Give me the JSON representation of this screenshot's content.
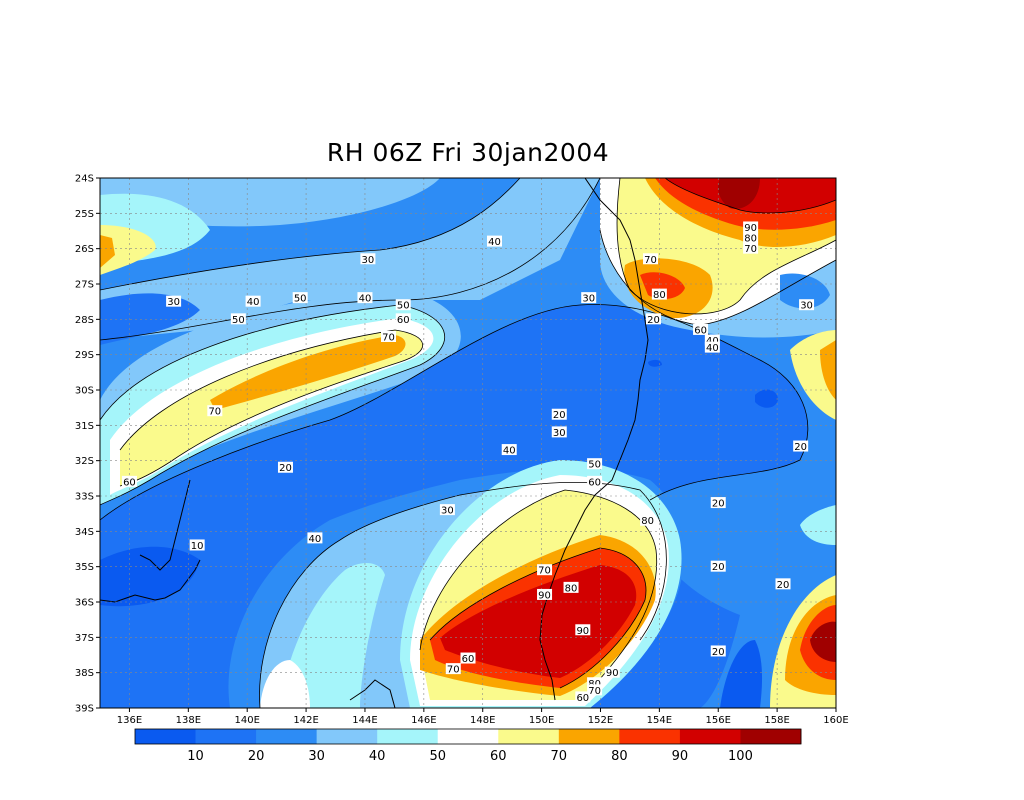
{
  "title": "RH 06Z Fri 30jan2004",
  "map": {
    "lon_range": [
      135,
      160
    ],
    "lat_range": [
      -39,
      -24
    ],
    "lon_ticks": [
      "136E",
      "138E",
      "140E",
      "142E",
      "144E",
      "146E",
      "148E",
      "150E",
      "152E",
      "154E",
      "156E",
      "158E",
      "160E"
    ],
    "lat_ticks": [
      "24S",
      "25S",
      "26S",
      "27S",
      "28S",
      "29S",
      "30S",
      "31S",
      "32S",
      "33S",
      "34S",
      "35S",
      "36S",
      "37S",
      "38S",
      "39S"
    ],
    "grid": true
  },
  "colorbar": {
    "labels": [
      "10",
      "20",
      "30",
      "40",
      "50",
      "60",
      "70",
      "80",
      "90",
      "100"
    ],
    "colors": [
      "#0a5af0",
      "#1e73f5",
      "#2d8cf5",
      "#82c8fa",
      "#a5f5fa",
      "#ffffff",
      "#fafa8c",
      "#faa500",
      "#fa3200",
      "#d20000",
      "#a00000"
    ]
  },
  "contour_labels": [
    {
      "text": "40",
      "lon": 148.4,
      "lat": -25.8
    },
    {
      "text": "30",
      "lon": 144.1,
      "lat": -26.3
    },
    {
      "text": "40",
      "lon": 144.0,
      "lat": -27.4
    },
    {
      "text": "30",
      "lon": 151.6,
      "lat": -27.4
    },
    {
      "text": "30",
      "lon": 137.5,
      "lat": -27.5
    },
    {
      "text": "40",
      "lon": 140.2,
      "lat": -27.5
    },
    {
      "text": "50",
      "lon": 141.8,
      "lat": -27.4
    },
    {
      "text": "50",
      "lon": 145.3,
      "lat": -27.6
    },
    {
      "text": "60",
      "lon": 145.3,
      "lat": -28.0
    },
    {
      "text": "50",
      "lon": 139.7,
      "lat": -28.0
    },
    {
      "text": "20",
      "lon": 153.8,
      "lat": -28.0
    },
    {
      "text": "70",
      "lon": 144.8,
      "lat": -28.5
    },
    {
      "text": "70",
      "lon": 138.9,
      "lat": -30.6
    },
    {
      "text": "20",
      "lon": 150.6,
      "lat": -30.7
    },
    {
      "text": "30",
      "lon": 150.6,
      "lat": -31.2
    },
    {
      "text": "40",
      "lon": 148.9,
      "lat": -31.7
    },
    {
      "text": "60",
      "lon": 136.0,
      "lat": -32.6
    },
    {
      "text": "20",
      "lon": 141.3,
      "lat": -32.2
    },
    {
      "text": "50",
      "lon": 151.8,
      "lat": -32.1
    },
    {
      "text": "60",
      "lon": 151.8,
      "lat": -32.6
    },
    {
      "text": "30",
      "lon": 146.8,
      "lat": -33.4
    },
    {
      "text": "80",
      "lon": 153.6,
      "lat": -33.7
    },
    {
      "text": "10",
      "lon": 138.3,
      "lat": -34.4
    },
    {
      "text": "40",
      "lon": 142.3,
      "lat": -34.2
    },
    {
      "text": "20",
      "lon": 156.0,
      "lat": -33.2
    },
    {
      "text": "20",
      "lon": 156.0,
      "lat": -35.0
    },
    {
      "text": "70",
      "lon": 150.1,
      "lat": -35.1
    },
    {
      "text": "80",
      "lon": 151.0,
      "lat": -35.6
    },
    {
      "text": "90",
      "lon": 150.1,
      "lat": -35.8
    },
    {
      "text": "20",
      "lon": 158.2,
      "lat": -35.5
    },
    {
      "text": "90",
      "lon": 151.4,
      "lat": -36.8
    },
    {
      "text": "60",
      "lon": 147.5,
      "lat": -37.6
    },
    {
      "text": "70",
      "lon": 147.0,
      "lat": -37.9
    },
    {
      "text": "90",
      "lon": 152.4,
      "lat": -38.0
    },
    {
      "text": "80",
      "lon": 151.8,
      "lat": -38.3
    },
    {
      "text": "70",
      "lon": 151.8,
      "lat": -38.5
    },
    {
      "text": "60",
      "lon": 151.4,
      "lat": -38.7
    },
    {
      "text": "20",
      "lon": 156.0,
      "lat": -37.4
    },
    {
      "text": "90",
      "lon": 157.1,
      "lat": -25.4
    },
    {
      "text": "80",
      "lon": 157.1,
      "lat": -25.7
    },
    {
      "text": "70",
      "lon": 157.1,
      "lat": -26.0
    },
    {
      "text": "70",
      "lon": 153.7,
      "lat": -26.3
    },
    {
      "text": "80",
      "lon": 154.0,
      "lat": -27.3
    },
    {
      "text": "60",
      "lon": 155.4,
      "lat": -28.3
    },
    {
      "text": "40",
      "lon": 155.8,
      "lat": -28.6
    },
    {
      "text": "40",
      "lon": 155.8,
      "lat": -28.8
    },
    {
      "text": "30",
      "lon": 159.0,
      "lat": -27.6
    },
    {
      "text": "20",
      "lon": 158.8,
      "lat": -31.6
    }
  ]
}
